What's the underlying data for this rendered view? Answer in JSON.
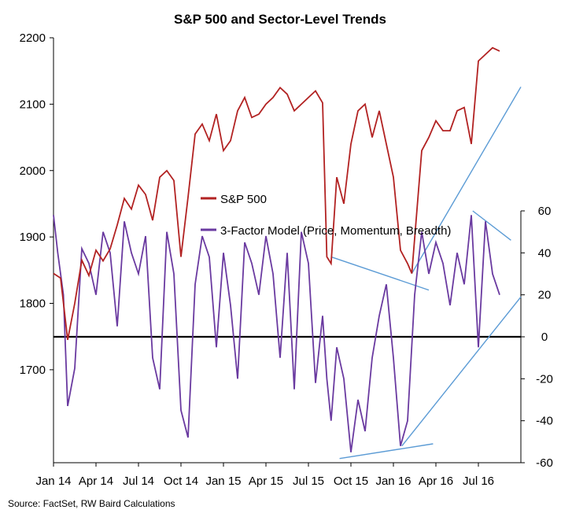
{
  "chart_data": {
    "type": "line",
    "title": "S&P 500 and Sector-Level Trends",
    "source": "Source: FactSet, RW Baird Calculations",
    "x_tick_labels": [
      "Jan 14",
      "Apr 14",
      "Jul 14",
      "Oct 14",
      "Jan 15",
      "Apr 15",
      "Jul 15",
      "Oct 15",
      "Jan 16",
      "Apr 16",
      "Jul 16"
    ],
    "x_ticks": [
      "2014-01",
      "2014-04",
      "2014-07",
      "2014-10",
      "2015-01",
      "2015-04",
      "2015-07",
      "2015-10",
      "2016-01",
      "2016-04",
      "2016-07"
    ],
    "xlim": [
      "2014-01",
      "2016-10"
    ],
    "y_left": {
      "ticks": [
        "2200",
        "2100",
        "2000",
        "1900",
        "1800",
        "1700"
      ],
      "range": [
        1560,
        2200
      ]
    },
    "y_right": {
      "ticks": [
        "60",
        "40",
        "20",
        "0",
        "-20",
        "-40",
        "-60"
      ],
      "range": [
        -60,
        60
      ]
    },
    "grid": false,
    "legend_position": "center-left",
    "colors": {
      "spx": "#b22222",
      "model": "#6a3aa0",
      "trend": "#5b9bd5",
      "zero": "#000000"
    },
    "series": [
      {
        "name": "S&P 500",
        "axis": "left",
        "x": [
          "2014-01",
          "2014-01.5",
          "2014-02",
          "2014-02.5",
          "2014-03",
          "2014-03.5",
          "2014-04",
          "2014-04.5",
          "2014-05",
          "2014-05.5",
          "2014-06",
          "2014-06.5",
          "2014-07",
          "2014-07.5",
          "2014-08",
          "2014-08.5",
          "2014-09",
          "2014-09.5",
          "2014-10",
          "2014-10.5",
          "2014-11",
          "2014-11.5",
          "2014-12",
          "2014-12.5",
          "2015-01",
          "2015-01.5",
          "2015-02",
          "2015-02.5",
          "2015-03",
          "2015-03.5",
          "2015-04",
          "2015-04.5",
          "2015-05",
          "2015-05.5",
          "2015-06",
          "2015-06.5",
          "2015-07",
          "2015-07.5",
          "2015-08",
          "2015-08.3",
          "2015-08.6",
          "2015-09",
          "2015-09.5",
          "2015-10",
          "2015-10.5",
          "2015-11",
          "2015-11.5",
          "2015-12",
          "2015-12.5",
          "2016-01",
          "2016-01.5",
          "2016-02",
          "2016-02.3",
          "2016-03",
          "2016-03.5",
          "2016-04",
          "2016-04.5",
          "2016-05",
          "2016-05.5",
          "2016-06",
          "2016-06.5",
          "2016-07",
          "2016-07.5",
          "2016-08",
          "2016-08.5"
        ],
        "values": [
          1845,
          1838,
          1745,
          1800,
          1865,
          1842,
          1880,
          1864,
          1882,
          1918,
          1958,
          1942,
          1978,
          1964,
          1925,
          1990,
          2000,
          1985,
          1870,
          1960,
          2055,
          2070,
          2045,
          2085,
          2030,
          2045,
          2090,
          2110,
          2080,
          2085,
          2100,
          2110,
          2125,
          2115,
          2090,
          2100,
          2110,
          2120,
          2102,
          1870,
          1860,
          1990,
          1950,
          2040,
          2090,
          2100,
          2050,
          2090,
          2040,
          1990,
          1880,
          1860,
          1845,
          2030,
          2050,
          2075,
          2060,
          2060,
          2090,
          2095,
          2040,
          2165,
          2175,
          2185,
          2180
        ]
      },
      {
        "name": "3-Factor Model (Price, Momentum, Breadth)",
        "axis": "right",
        "x": [
          "2014-01",
          "2014-01.3",
          "2014-01.7",
          "2014-02",
          "2014-02.5",
          "2014-03",
          "2014-03.5",
          "2014-04",
          "2014-04.5",
          "2014-05",
          "2014-05.5",
          "2014-06",
          "2014-06.5",
          "2014-07",
          "2014-07.5",
          "2014-08",
          "2014-08.5",
          "2014-09",
          "2014-09.5",
          "2014-10",
          "2014-10.5",
          "2014-11",
          "2014-11.5",
          "2014-12",
          "2014-12.5",
          "2015-01",
          "2015-01.5",
          "2015-02",
          "2015-02.5",
          "2015-03",
          "2015-03.5",
          "2015-04",
          "2015-04.5",
          "2015-05",
          "2015-05.5",
          "2015-06",
          "2015-06.5",
          "2015-07",
          "2015-07.5",
          "2015-08",
          "2015-08.3",
          "2015-08.6",
          "2015-09",
          "2015-09.5",
          "2015-10",
          "2015-10.5",
          "2015-11",
          "2015-11.5",
          "2015-12",
          "2015-12.5",
          "2016-01",
          "2016-01.5",
          "2016-02",
          "2016-02.5",
          "2016-03",
          "2016-03.5",
          "2016-04",
          "2016-04.5",
          "2016-05",
          "2016-05.5",
          "2016-06",
          "2016-06.5",
          "2016-07",
          "2016-07.5",
          "2016-08",
          "2016-08.5"
        ],
        "values": [
          58,
          40,
          20,
          -33,
          -15,
          42,
          35,
          20,
          50,
          40,
          5,
          55,
          40,
          30,
          48,
          -10,
          -25,
          50,
          30,
          -35,
          -48,
          25,
          48,
          38,
          -5,
          40,
          15,
          -20,
          45,
          35,
          20,
          48,
          30,
          -10,
          40,
          -25,
          50,
          35,
          -22,
          10,
          -20,
          -40,
          -5,
          -20,
          -55,
          -30,
          -45,
          -10,
          10,
          25,
          -10,
          -52,
          -40,
          20,
          50,
          30,
          45,
          35,
          15,
          40,
          25,
          58,
          -5,
          55,
          30,
          20
        ]
      }
    ],
    "trend_lines": [
      {
        "name": "spx-lower-high-trend",
        "axis": "left",
        "from": [
          "2015-08.6",
          1870
        ],
        "to": [
          "2016-03.5",
          1820
        ]
      },
      {
        "name": "spx-uptrend",
        "axis": "left",
        "from": [
          "2016-02.3",
          1845
        ],
        "to": [
          "2016-10",
          2126
        ]
      },
      {
        "name": "model-diverging-trend",
        "axis": "right",
        "from": [
          "2015-09.2",
          -58
        ],
        "to": [
          "2016-03.8",
          -51
        ]
      },
      {
        "name": "model-uptrend",
        "axis": "right",
        "from": [
          "2016-01.6",
          -52
        ],
        "to": [
          "2016-10",
          19
        ]
      },
      {
        "name": "model-recent-downtrend",
        "axis": "right",
        "from": [
          "2016-06.6",
          60
        ],
        "to": [
          "2016-09.3",
          46
        ]
      }
    ]
  }
}
